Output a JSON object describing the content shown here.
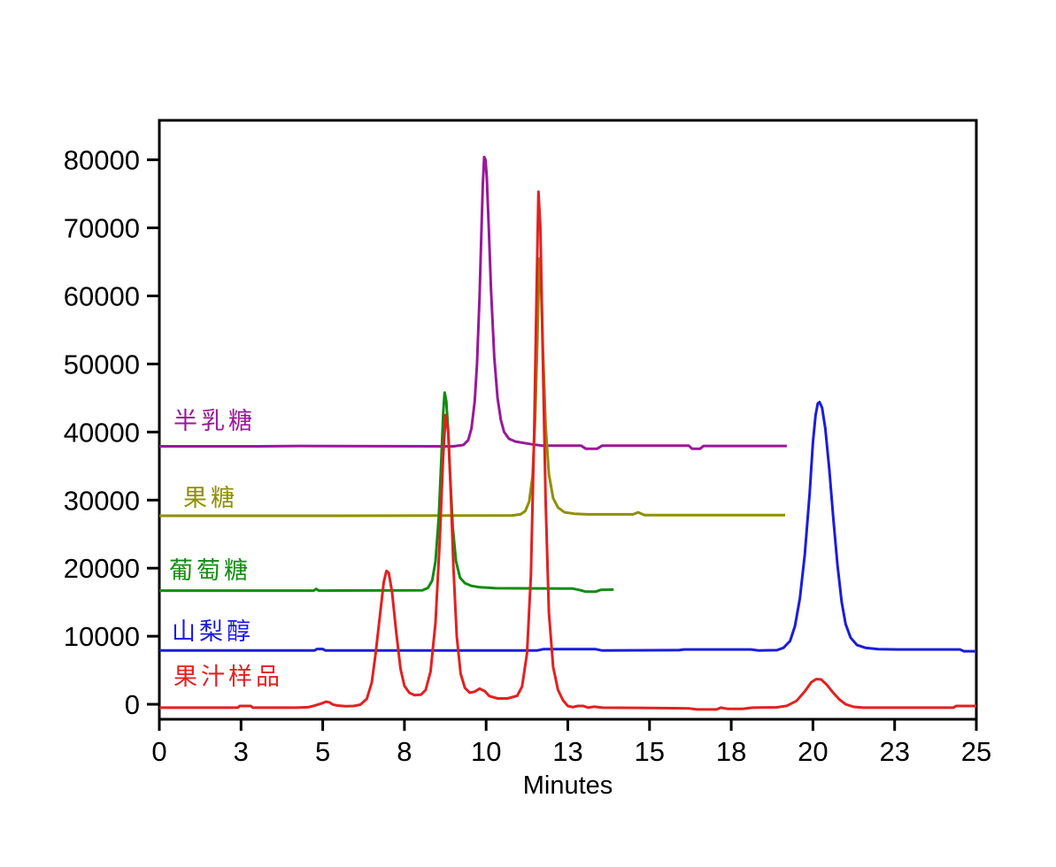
{
  "figure": {
    "background": "#ffffff",
    "axis_color": "#000000"
  },
  "chart_data": {
    "type": "line",
    "title": "",
    "xlabel": "Minutes",
    "ylabel": "",
    "xlim": [
      0,
      25
    ],
    "ylim": [
      -2200,
      85800
    ],
    "grid": false,
    "legend_position": "left-of-each-trace-baseline",
    "x_ticks": {
      "positions": [
        0,
        2.5,
        5,
        7.5,
        10,
        12.5,
        15,
        17.5,
        20,
        22.5,
        25
      ],
      "labels": [
        "0",
        "3",
        "5",
        "8",
        "10",
        "13",
        "15",
        "18",
        "20",
        "23",
        "25"
      ]
    },
    "y_ticks": {
      "positions": [
        0,
        10000,
        20000,
        30000,
        40000,
        50000,
        60000,
        70000,
        80000
      ],
      "labels": [
        "0",
        "10000",
        "20000",
        "30000",
        "40000",
        "50000",
        "60000",
        "70000",
        "80000"
      ]
    },
    "series": [
      {
        "id": "galactose",
        "name": "半乳糖",
        "color": "#991899",
        "baseline": 37900,
        "main_peak": {
          "minutes": 9.94,
          "value": 80400
        },
        "points": [
          [
            0,
            37900
          ],
          [
            3.0,
            37900
          ],
          [
            4.3,
            37950
          ],
          [
            9.0,
            37900
          ],
          [
            9.3,
            38100
          ],
          [
            9.45,
            38800
          ],
          [
            9.55,
            40500
          ],
          [
            9.65,
            44500
          ],
          [
            9.72,
            50000
          ],
          [
            9.8,
            60000
          ],
          [
            9.86,
            70000
          ],
          [
            9.9,
            76500
          ],
          [
            9.94,
            80400
          ],
          [
            9.98,
            80000
          ],
          [
            10.02,
            77500
          ],
          [
            10.08,
            70000
          ],
          [
            10.15,
            61000
          ],
          [
            10.25,
            51000
          ],
          [
            10.35,
            45000
          ],
          [
            10.45,
            41800
          ],
          [
            10.55,
            40000
          ],
          [
            10.7,
            39000
          ],
          [
            10.9,
            38600
          ],
          [
            11.15,
            38400
          ],
          [
            11.4,
            38200
          ],
          [
            11.7,
            38000
          ],
          [
            12.9,
            38000
          ],
          [
            13.05,
            37550
          ],
          [
            13.4,
            37550
          ],
          [
            13.55,
            38000
          ],
          [
            16.2,
            38000
          ],
          [
            16.3,
            37550
          ],
          [
            16.55,
            37550
          ],
          [
            16.65,
            37950
          ],
          [
            19.2,
            37950
          ]
        ]
      },
      {
        "id": "fructose",
        "name": "果糖",
        "color": "#8F8F00",
        "baseline": 27750,
        "main_peak": {
          "minutes": 11.63,
          "value": 65500
        },
        "points": [
          [
            0,
            27700
          ],
          [
            5.0,
            27700
          ],
          [
            10.8,
            27750
          ],
          [
            11.05,
            27900
          ],
          [
            11.2,
            28400
          ],
          [
            11.32,
            29800
          ],
          [
            11.42,
            33500
          ],
          [
            11.5,
            42000
          ],
          [
            11.57,
            54000
          ],
          [
            11.63,
            65500
          ],
          [
            11.68,
            62000
          ],
          [
            11.74,
            52000
          ],
          [
            11.82,
            41000
          ],
          [
            11.92,
            33800
          ],
          [
            12.05,
            30300
          ],
          [
            12.2,
            28900
          ],
          [
            12.4,
            28200
          ],
          [
            12.7,
            28000
          ],
          [
            13.1,
            27900
          ],
          [
            14.5,
            27900
          ],
          [
            14.65,
            28200
          ],
          [
            14.85,
            27800
          ],
          [
            15.5,
            27800
          ],
          [
            19.15,
            27800
          ]
        ]
      },
      {
        "id": "glucose",
        "name": "葡萄糖",
        "color": "#118C11",
        "baseline": 16700,
        "main_peak": {
          "minutes": 8.73,
          "value": 45800
        },
        "points": [
          [
            0,
            16700
          ],
          [
            4.72,
            16700
          ],
          [
            4.8,
            16950
          ],
          [
            4.88,
            16700
          ],
          [
            8.05,
            16750
          ],
          [
            8.22,
            17100
          ],
          [
            8.35,
            18200
          ],
          [
            8.45,
            21000
          ],
          [
            8.55,
            27500
          ],
          [
            8.63,
            36000
          ],
          [
            8.69,
            43000
          ],
          [
            8.73,
            45800
          ],
          [
            8.78,
            44500
          ],
          [
            8.84,
            40000
          ],
          [
            8.9,
            33500
          ],
          [
            8.98,
            26000
          ],
          [
            9.08,
            21000
          ],
          [
            9.2,
            18600
          ],
          [
            9.35,
            17800
          ],
          [
            9.55,
            17400
          ],
          [
            9.8,
            17200
          ],
          [
            10.3,
            17050
          ],
          [
            12.65,
            17000
          ],
          [
            12.85,
            16800
          ],
          [
            13.05,
            16550
          ],
          [
            13.35,
            16550
          ],
          [
            13.5,
            16800
          ],
          [
            13.9,
            16850
          ]
        ]
      },
      {
        "id": "sorbitol",
        "name": "山梨醇",
        "color": "#1C1CDC",
        "baseline": 7900,
        "main_peak": {
          "minutes": 20.2,
          "value": 44400
        },
        "points": [
          [
            0,
            7900
          ],
          [
            4.75,
            7900
          ],
          [
            4.82,
            8120
          ],
          [
            5.0,
            8120
          ],
          [
            5.08,
            7900
          ],
          [
            11.55,
            7900
          ],
          [
            11.75,
            8100
          ],
          [
            13.35,
            8100
          ],
          [
            13.55,
            7900
          ],
          [
            15.9,
            7950
          ],
          [
            16.05,
            8050
          ],
          [
            18.1,
            8050
          ],
          [
            18.35,
            7900
          ],
          [
            18.9,
            7950
          ],
          [
            19.1,
            8300
          ],
          [
            19.3,
            9300
          ],
          [
            19.45,
            11500
          ],
          [
            19.6,
            15500
          ],
          [
            19.75,
            22000
          ],
          [
            19.9,
            31000
          ],
          [
            20.0,
            38500
          ],
          [
            20.08,
            42500
          ],
          [
            20.15,
            44200
          ],
          [
            20.2,
            44400
          ],
          [
            20.28,
            43600
          ],
          [
            20.38,
            40500
          ],
          [
            20.5,
            34500
          ],
          [
            20.62,
            27500
          ],
          [
            20.75,
            20500
          ],
          [
            20.88,
            15000
          ],
          [
            21.0,
            11800
          ],
          [
            21.15,
            9800
          ],
          [
            21.35,
            8700
          ],
          [
            21.6,
            8300
          ],
          [
            22.0,
            8100
          ],
          [
            22.6,
            8050
          ],
          [
            24.5,
            8050
          ],
          [
            24.62,
            7800
          ],
          [
            25,
            7800
          ]
        ]
      },
      {
        "id": "juice-sample",
        "name": "果汁样品",
        "color": "#E32020",
        "baseline": -500,
        "peaks": [
          {
            "minutes": 6.95,
            "value": 19600
          },
          {
            "minutes": 8.76,
            "value": 42500
          },
          {
            "minutes": 11.6,
            "value": 75300
          },
          {
            "minutes": 20.1,
            "value": 3700
          }
        ],
        "points": [
          [
            0,
            -500
          ],
          [
            2.4,
            -500
          ],
          [
            2.46,
            -250
          ],
          [
            2.8,
            -250
          ],
          [
            2.86,
            -500
          ],
          [
            4.2,
            -500
          ],
          [
            4.55,
            -430
          ],
          [
            4.75,
            -200
          ],
          [
            4.95,
            100
          ],
          [
            5.1,
            380
          ],
          [
            5.2,
            300
          ],
          [
            5.3,
            -30
          ],
          [
            5.45,
            -180
          ],
          [
            5.7,
            -280
          ],
          [
            5.95,
            -250
          ],
          [
            6.15,
            -50
          ],
          [
            6.35,
            800
          ],
          [
            6.5,
            3200
          ],
          [
            6.62,
            7500
          ],
          [
            6.75,
            13000
          ],
          [
            6.87,
            18000
          ],
          [
            6.95,
            19600
          ],
          [
            7.02,
            19300
          ],
          [
            7.12,
            16500
          ],
          [
            7.25,
            10500
          ],
          [
            7.38,
            5200
          ],
          [
            7.5,
            2700
          ],
          [
            7.65,
            1700
          ],
          [
            7.8,
            1350
          ],
          [
            8.0,
            1400
          ],
          [
            8.15,
            2100
          ],
          [
            8.3,
            4800
          ],
          [
            8.45,
            12000
          ],
          [
            8.58,
            24000
          ],
          [
            8.68,
            36000
          ],
          [
            8.76,
            42500
          ],
          [
            8.84,
            40000
          ],
          [
            8.92,
            31000
          ],
          [
            9.0,
            20000
          ],
          [
            9.1,
            10000
          ],
          [
            9.22,
            4500
          ],
          [
            9.35,
            2400
          ],
          [
            9.5,
            1700
          ],
          [
            9.65,
            1850
          ],
          [
            9.8,
            2300
          ],
          [
            9.95,
            1950
          ],
          [
            10.1,
            1200
          ],
          [
            10.35,
            850
          ],
          [
            10.65,
            850
          ],
          [
            10.95,
            1250
          ],
          [
            11.1,
            2600
          ],
          [
            11.25,
            7500
          ],
          [
            11.37,
            19000
          ],
          [
            11.47,
            40000
          ],
          [
            11.55,
            62000
          ],
          [
            11.6,
            75300
          ],
          [
            11.66,
            70000
          ],
          [
            11.73,
            52000
          ],
          [
            11.82,
            30000
          ],
          [
            11.92,
            13500
          ],
          [
            12.05,
            5500
          ],
          [
            12.2,
            2100
          ],
          [
            12.35,
            600
          ],
          [
            12.5,
            -250
          ],
          [
            12.65,
            -420
          ],
          [
            12.8,
            -250
          ],
          [
            12.98,
            -250
          ],
          [
            13.12,
            -500
          ],
          [
            13.3,
            -350
          ],
          [
            13.55,
            -500
          ],
          [
            14.6,
            -520
          ],
          [
            16.2,
            -600
          ],
          [
            16.45,
            -760
          ],
          [
            17.05,
            -760
          ],
          [
            17.18,
            -500
          ],
          [
            17.4,
            -680
          ],
          [
            17.85,
            -680
          ],
          [
            18.15,
            -500
          ],
          [
            18.9,
            -450
          ],
          [
            19.2,
            -220
          ],
          [
            19.5,
            500
          ],
          [
            19.75,
            1900
          ],
          [
            19.95,
            3250
          ],
          [
            20.1,
            3700
          ],
          [
            20.25,
            3650
          ],
          [
            20.42,
            2900
          ],
          [
            20.6,
            1800
          ],
          [
            20.8,
            750
          ],
          [
            21.0,
            0
          ],
          [
            21.25,
            -380
          ],
          [
            21.55,
            -500
          ],
          [
            23.4,
            -500
          ],
          [
            24.3,
            -500
          ],
          [
            24.38,
            -250
          ],
          [
            25,
            -250
          ]
        ]
      }
    ]
  }
}
